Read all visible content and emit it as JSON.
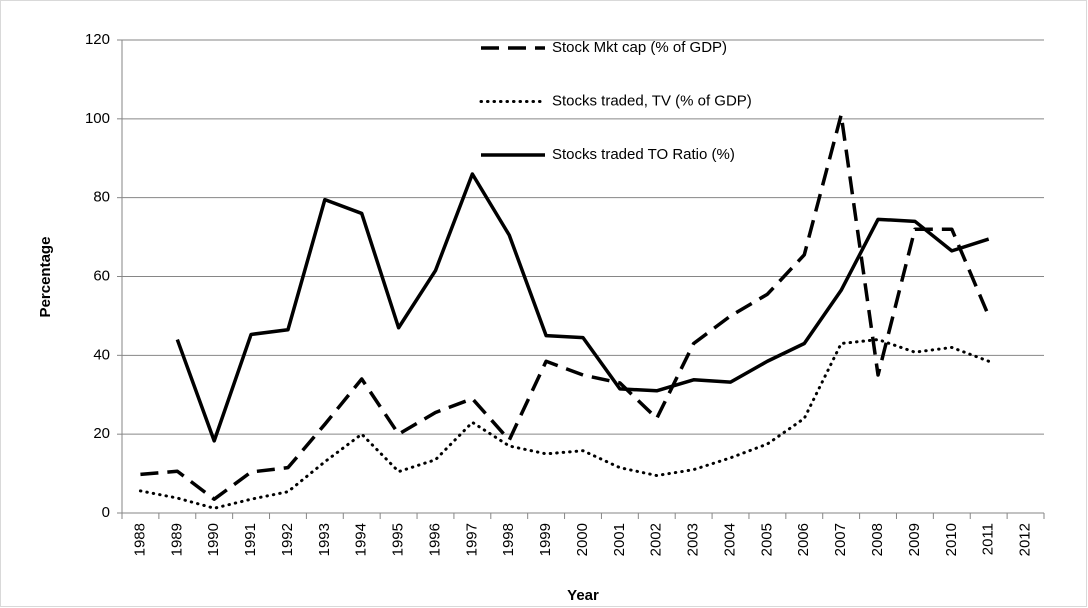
{
  "chart_data": {
    "type": "line",
    "x_label": "Year",
    "y_label": "Percentage",
    "categories": [
      "1988",
      "1989",
      "1990",
      "1991",
      "1992",
      "1993",
      "1994",
      "1995",
      "1996",
      "1997",
      "1998",
      "1999",
      "2000",
      "2001",
      "2002",
      "2003",
      "2004",
      "2005",
      "2006",
      "2007",
      "2008",
      "2009",
      "2010",
      "2011",
      "2012"
    ],
    "series": [
      {
        "name": "Stock Mkt cap (% of GDP)",
        "color": "#000000",
        "style": "dashed",
        "values": [
          9.8,
          10.6,
          3.5,
          10.4,
          11.5,
          22.5,
          34,
          20,
          25.5,
          29,
          18.5,
          38.5,
          35,
          33,
          24,
          43,
          50,
          55.5,
          65.5,
          101,
          35,
          72,
          72,
          50,
          null
        ]
      },
      {
        "name": "Stocks traded, TV (% of GDP)",
        "color": "#000000",
        "style": "dotted",
        "values": [
          5.6,
          3.8,
          1.2,
          3.5,
          5.4,
          13,
          20,
          10.5,
          13.5,
          23,
          17,
          15,
          15.8,
          11.5,
          9.5,
          11,
          14,
          17.5,
          24,
          43,
          44,
          40.8,
          42,
          38.5,
          null
        ]
      },
      {
        "name": "Stocks traded TO Ratio (%)",
        "color": "#000000",
        "style": "solid",
        "values": [
          null,
          44,
          18.3,
          45.3,
          46.5,
          79.5,
          76,
          47,
          61.5,
          86,
          70.5,
          45,
          44.5,
          31.5,
          31,
          33.8,
          33.2,
          38.5,
          43,
          56.5,
          74.5,
          74,
          66.5,
          69.5,
          null
        ]
      }
    ],
    "ylim": [
      0,
      120
    ],
    "yticks": [
      0,
      20,
      40,
      60,
      80,
      100,
      120
    ],
    "grid": true
  }
}
